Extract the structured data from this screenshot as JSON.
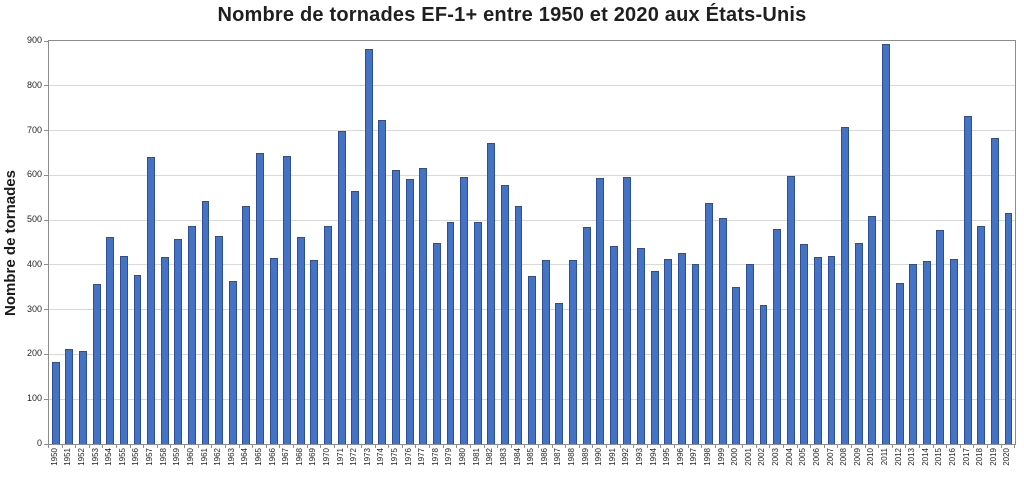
{
  "title": "Nombre de tornades EF-1+ entre 1950 et 2020 aux États-Unis",
  "colors": {
    "bar_fill": "#4472c4",
    "bar_border": "#2e4f8f",
    "gridline": "#d9d9d9",
    "plot_border": "#8c8c8c",
    "text": "#1f1f1f"
  },
  "chart_data": {
    "type": "bar",
    "title": "Nombre de tornades EF-1+ entre 1950 et 2020 aux États-Unis",
    "xlabel": "",
    "ylabel": "Nombre de tornades",
    "ylim": [
      0,
      900
    ],
    "y_ticks": [
      0,
      100,
      200,
      300,
      400,
      500,
      600,
      700,
      800,
      900
    ],
    "grid": true,
    "legend": false,
    "categories": [
      "1950",
      "1951",
      "1952",
      "1953",
      "1954",
      "1955",
      "1956",
      "1957",
      "1958",
      "1959",
      "1960",
      "1961",
      "1962",
      "1963",
      "1964",
      "1965",
      "1966",
      "1967",
      "1968",
      "1969",
      "1970",
      "1971",
      "1972",
      "1973",
      "1974",
      "1975",
      "1976",
      "1977",
      "1978",
      "1979",
      "1980",
      "1981",
      "1982",
      "1983",
      "1984",
      "1985",
      "1986",
      "1987",
      "1988",
      "1989",
      "1990",
      "1991",
      "1992",
      "1993",
      "1994",
      "1995",
      "1996",
      "1997",
      "1998",
      "1999",
      "2000",
      "2001",
      "2002",
      "2003",
      "2004",
      "2005",
      "2006",
      "2007",
      "2008",
      "2009",
      "2010",
      "2011",
      "2012",
      "2013",
      "2014",
      "2015",
      "2016",
      "2017",
      "2018",
      "2019",
      "2020"
    ],
    "values": [
      184,
      212,
      208,
      357,
      462,
      420,
      378,
      641,
      418,
      458,
      487,
      542,
      465,
      365,
      532,
      650,
      415,
      644,
      463,
      411,
      487,
      700,
      565,
      883,
      723,
      612,
      592,
      616,
      450,
      495,
      597,
      495,
      672,
      578,
      532,
      375,
      411,
      314,
      412,
      485,
      595,
      442,
      597,
      437,
      387,
      413,
      427,
      403,
      538,
      505,
      351,
      403,
      311,
      481,
      599,
      447,
      418,
      421,
      707,
      450,
      509,
      894,
      360,
      403,
      409,
      477,
      414,
      733,
      488,
      684,
      515
    ]
  }
}
